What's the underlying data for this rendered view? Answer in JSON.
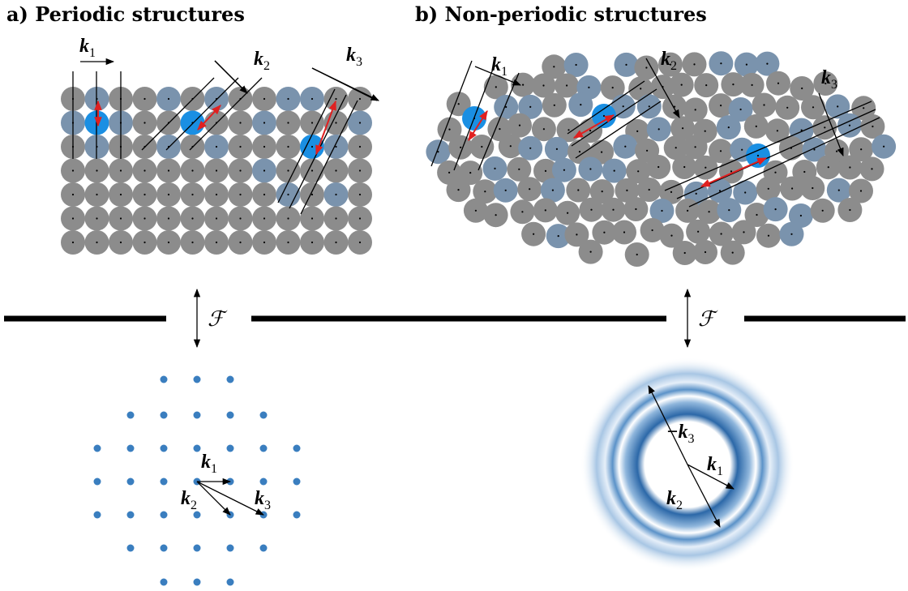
{
  "panel_a": {
    "title": "a) Periodic structures",
    "vectors": [
      {
        "symbol": "k",
        "index": "1"
      },
      {
        "symbol": "k",
        "index": "2"
      },
      {
        "symbol": "k",
        "index": "3"
      }
    ]
  },
  "panel_b": {
    "title": "b) Non-periodic structures",
    "vectors": [
      {
        "symbol": "k",
        "index": "1"
      },
      {
        "symbol": "k",
        "index": "2"
      },
      {
        "symbol": "k",
        "index": "3"
      }
    ]
  },
  "transform": {
    "left": "ℱ",
    "right": "ℱ"
  },
  "fourier_a": {
    "vectors": [
      {
        "symbol": "k",
        "index": "1"
      },
      {
        "symbol": "k",
        "index": "2"
      },
      {
        "symbol": "k",
        "index": "3"
      }
    ]
  },
  "fourier_b": {
    "vectors": [
      {
        "sign": "−",
        "symbol": "k",
        "index": "3"
      },
      {
        "symbol": "k",
        "index": "1"
      },
      {
        "symbol": "k",
        "index": "2"
      }
    ]
  }
}
